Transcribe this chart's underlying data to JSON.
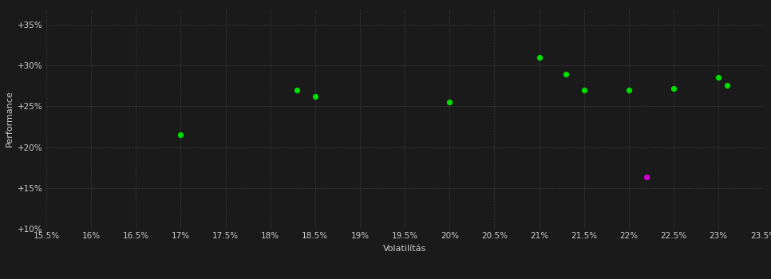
{
  "background_color": "#1a1a1a",
  "grid_color": "#3a3a3a",
  "text_color": "#cccccc",
  "xlabel": "Volatilítás",
  "ylabel": "Performance",
  "xlim": [
    0.155,
    0.235
  ],
  "ylim": [
    0.1,
    0.37
  ],
  "green_points": [
    [
      0.17,
      0.215
    ],
    [
      0.183,
      0.27
    ],
    [
      0.185,
      0.262
    ],
    [
      0.2,
      0.255
    ],
    [
      0.21,
      0.31
    ],
    [
      0.213,
      0.289
    ],
    [
      0.215,
      0.27
    ],
    [
      0.22,
      0.27
    ],
    [
      0.225,
      0.272
    ],
    [
      0.23,
      0.286
    ],
    [
      0.231,
      0.276
    ]
  ],
  "purple_points": [
    [
      0.222,
      0.163
    ]
  ],
  "green_color": "#00dd00",
  "purple_color": "#cc00cc",
  "dot_size": 18,
  "label_fontsize": 8,
  "tick_fontsize": 7.5
}
